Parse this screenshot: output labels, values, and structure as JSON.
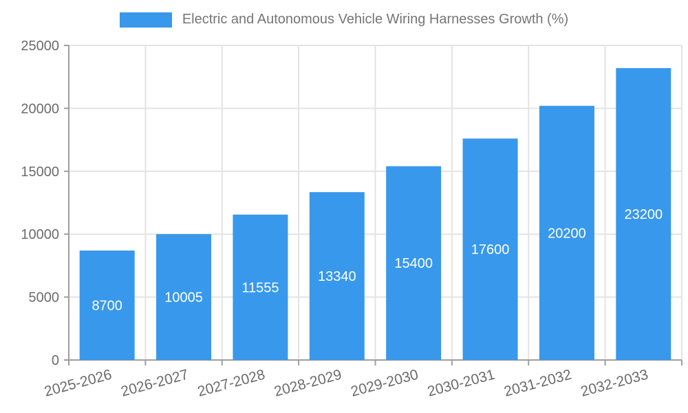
{
  "legend": {
    "label": "Electric and Autonomous Vehicle Wiring Harnesses Growth (%)"
  },
  "chart_data": {
    "type": "bar",
    "title": "Electric and Autonomous Vehicle Wiring Harnesses Growth (%)",
    "categories": [
      "2025-2026",
      "2026-2027",
      "2027-2028",
      "2028-2029",
      "2029-2030",
      "2030-2031",
      "2031-2032",
      "2032-2033"
    ],
    "values": [
      8700,
      10005,
      11555,
      13340,
      15400,
      17600,
      20200,
      23200
    ],
    "xlabel": "",
    "ylabel": "",
    "ylim": [
      0,
      25000
    ],
    "yticks": [
      0,
      5000,
      10000,
      15000,
      20000,
      25000
    ],
    "grid": true,
    "legend_position": "top",
    "value_labels_position": "inside-center",
    "x_label_rotation": -15,
    "colors": {
      "bar": "#3898ec",
      "value_label": "#ffffff",
      "axis": "#9e9e9e",
      "grid": "#e3e3e3",
      "tick_label": "#6b6b6b",
      "legend_label": "#757575"
    }
  }
}
